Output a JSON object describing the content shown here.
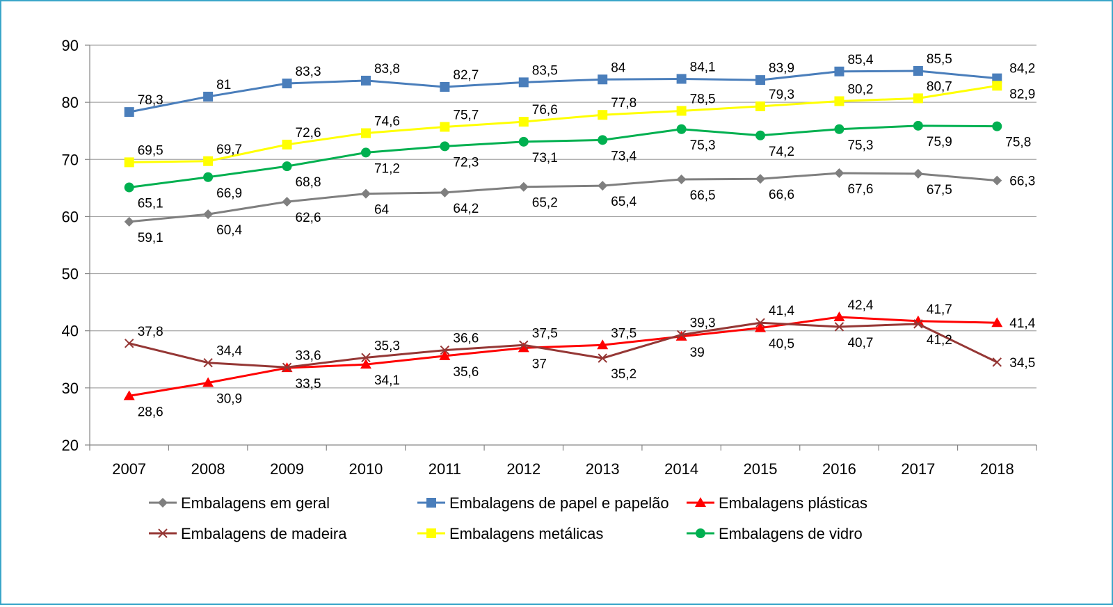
{
  "chart_data": {
    "type": "line",
    "title": "",
    "xlabel": "",
    "ylabel": "",
    "ylim": [
      20,
      90
    ],
    "yticks": [
      20,
      30,
      40,
      50,
      60,
      70,
      80,
      90
    ],
    "grid": "horizontal",
    "legend_position": "bottom",
    "categories": [
      "2007",
      "2008",
      "2009",
      "2010",
      "2011",
      "2012",
      "2013",
      "2014",
      "2015",
      "2016",
      "2017",
      "2018"
    ],
    "series": [
      {
        "name": "Embalagens em geral",
        "color": "#7f7f7f",
        "marker": "diamond",
        "values": [
          59.1,
          60.4,
          62.6,
          64,
          64.2,
          65.2,
          65.4,
          66.5,
          66.6,
          67.6,
          67.5,
          66.3
        ],
        "labels": [
          "59,1",
          "60,4",
          "62,6",
          "64",
          "64,2",
          "65,2",
          "65,4",
          "66,5",
          "66,6",
          "67,6",
          "67,5",
          "66,3"
        ]
      },
      {
        "name": "Embalagens de papel e papelão",
        "color": "#4a7ebb",
        "marker": "square",
        "values": [
          78.3,
          81,
          83.3,
          83.8,
          82.7,
          83.5,
          84,
          84.1,
          83.9,
          85.4,
          85.5,
          84.2
        ],
        "labels": [
          "78,3",
          "81",
          "83,3",
          "83,8",
          "82,7",
          "83,5",
          "84",
          "84,1",
          "83,9",
          "85,4",
          "85,5",
          "84,2"
        ]
      },
      {
        "name": "Embalagens plásticas",
        "color": "#ff0000",
        "marker": "triangle",
        "values": [
          28.6,
          30.9,
          33.5,
          34.1,
          35.6,
          37,
          37.5,
          39,
          40.5,
          42.4,
          41.7,
          41.4
        ],
        "labels": [
          "28,6",
          "30,9",
          "33,5",
          "34,1",
          "35,6",
          "37",
          "37,5",
          "39",
          "40,5",
          "42,4",
          "41,7",
          "41,4"
        ]
      },
      {
        "name": "Embalagens de madeira",
        "color": "#953735",
        "marker": "x",
        "values": [
          37.8,
          34.4,
          33.6,
          35.3,
          36.6,
          37.5,
          35.2,
          39.3,
          41.4,
          40.7,
          41.2,
          34.5
        ],
        "labels": [
          "37,8",
          "34,4",
          "33,6",
          "35,3",
          "36,6",
          "37,5",
          "35,2",
          "39,3",
          "41,4",
          "40,7",
          "41,2",
          "34,5"
        ]
      },
      {
        "name": "Embalagens metálicas",
        "color": "#ffff00",
        "marker": "square",
        "values": [
          69.5,
          69.7,
          72.6,
          74.6,
          75.7,
          76.6,
          77.8,
          78.5,
          79.3,
          80.2,
          80.7,
          82.9
        ],
        "labels": [
          "69,5",
          "69,7",
          "72,6",
          "74,6",
          "75,7",
          "76,6",
          "77,8",
          "78,5",
          "79,3",
          "80,2",
          "80,7",
          "82,9"
        ]
      },
      {
        "name": "Embalagens de vidro",
        "color": "#00b050",
        "marker": "circle",
        "values": [
          65.1,
          66.9,
          68.8,
          71.2,
          72.3,
          73.1,
          73.4,
          75.3,
          74.2,
          75.3,
          75.9,
          75.8
        ],
        "labels": [
          "65,1",
          "66,9",
          "68,8",
          "71,2",
          "72,3",
          "73,1",
          "73,4",
          "75,3",
          "74,2",
          "75,3",
          "75,9",
          "75,8"
        ]
      }
    ]
  }
}
